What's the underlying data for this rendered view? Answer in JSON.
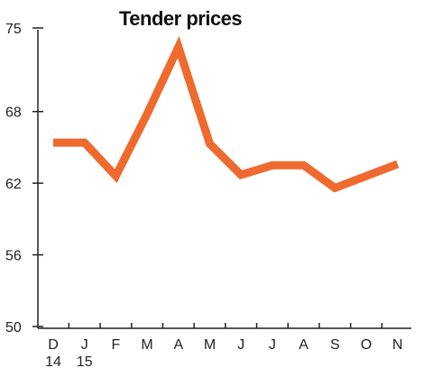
{
  "chart_data": {
    "type": "line",
    "title": "Tender prices",
    "xlabel": "",
    "ylabel": "",
    "categories": [
      "D",
      "J",
      "F",
      "M",
      "A",
      "M",
      "J",
      "J",
      "A",
      "S",
      "O",
      "N"
    ],
    "category_sublabels": [
      "14",
      "15",
      "",
      "",
      "",
      "",
      "",
      "",
      "",
      "",
      "",
      ""
    ],
    "yticks": [
      "50",
      "56",
      "62",
      "68",
      "75"
    ],
    "ylim": [
      50,
      75
    ],
    "grid": false,
    "series": [
      {
        "values": [
          65.4,
          65.4,
          62.6,
          67.8,
          73.4,
          65.3,
          62.7,
          63.5,
          63.5,
          61.6,
          62.6,
          63.6
        ]
      }
    ],
    "colors": {
      "line": "#ee6a2e",
      "axis": "#222222",
      "text": "#111111"
    }
  }
}
